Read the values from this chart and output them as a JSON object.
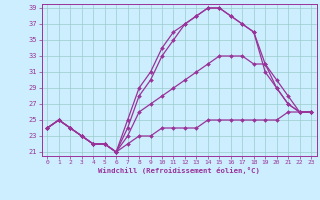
{
  "xlabel": "Windchill (Refroidissement éolien,°C)",
  "bg_color": "#cceeff",
  "grid_color": "#99cccc",
  "line_color": "#993399",
  "xlim": [
    -0.5,
    23.5
  ],
  "ylim": [
    20.5,
    39.5
  ],
  "xticks": [
    0,
    1,
    2,
    3,
    4,
    5,
    6,
    7,
    8,
    9,
    10,
    11,
    12,
    13,
    14,
    15,
    16,
    17,
    18,
    19,
    20,
    21,
    22,
    23
  ],
  "yticks": [
    21,
    23,
    25,
    27,
    29,
    31,
    33,
    35,
    37,
    39
  ],
  "series": [
    {
      "x": [
        0,
        1,
        2,
        3,
        4,
        5,
        6,
        7,
        8,
        9,
        10,
        11,
        12,
        13,
        14,
        15,
        16,
        17,
        18,
        19,
        20,
        21,
        22,
        23
      ],
      "y": [
        24,
        25,
        24,
        23,
        22,
        22,
        21,
        22,
        23,
        23,
        24,
        24,
        24,
        24,
        25,
        25,
        25,
        25,
        25,
        25,
        25,
        26,
        26,
        26
      ]
    },
    {
      "x": [
        0,
        1,
        2,
        3,
        4,
        5,
        6,
        7,
        8,
        9,
        10,
        11,
        12,
        13,
        14,
        15,
        16,
        17,
        18,
        19,
        20,
        21,
        22,
        23
      ],
      "y": [
        24,
        25,
        24,
        23,
        22,
        22,
        21,
        23,
        26,
        27,
        28,
        29,
        30,
        31,
        32,
        33,
        33,
        33,
        32,
        32,
        30,
        28,
        26,
        26
      ]
    },
    {
      "x": [
        0,
        1,
        2,
        3,
        4,
        5,
        6,
        7,
        8,
        9,
        10,
        11,
        12,
        13,
        14,
        15,
        16,
        17,
        18,
        19,
        20,
        21,
        22,
        23
      ],
      "y": [
        24,
        25,
        24,
        23,
        22,
        22,
        21,
        25,
        29,
        31,
        34,
        36,
        37,
        38,
        39,
        39,
        38,
        37,
        36,
        32,
        29,
        27,
        26,
        26
      ]
    },
    {
      "x": [
        0,
        1,
        2,
        3,
        4,
        5,
        6,
        7,
        8,
        9,
        10,
        11,
        12,
        13,
        14,
        15,
        16,
        17,
        18,
        19,
        20,
        21,
        22,
        23
      ],
      "y": [
        24,
        25,
        24,
        23,
        22,
        22,
        21,
        24,
        28,
        30,
        33,
        35,
        37,
        38,
        39,
        39,
        38,
        37,
        36,
        31,
        29,
        27,
        26,
        26
      ]
    }
  ]
}
